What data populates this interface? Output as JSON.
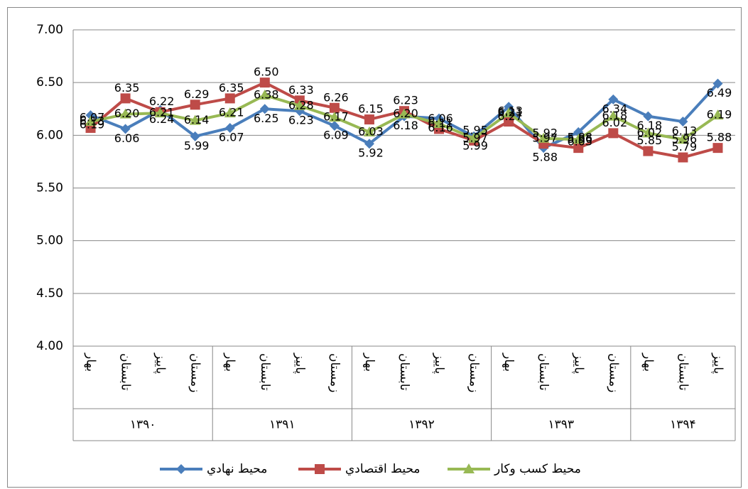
{
  "chart_data": {
    "type": "line",
    "groups": [
      {
        "label": "۱۳۹۰",
        "categories": [
          "بهار",
          "تابستان",
          "پاییز",
          "زمستان"
        ]
      },
      {
        "label": "۱۳۹۱",
        "categories": [
          "بهار",
          "تابستان",
          "پاییز",
          "زمستان"
        ]
      },
      {
        "label": "۱۳۹۲",
        "categories": [
          "بهار",
          "تابستان",
          "پاییز",
          "زمستان"
        ]
      },
      {
        "label": "۱۳۹۳",
        "categories": [
          "بهار",
          "تابستان",
          "پاییز",
          "زمستان"
        ]
      },
      {
        "label": "۱۳۹۴",
        "categories": [
          "بهار",
          "تابستان",
          "پاییز"
        ]
      }
    ],
    "series": [
      {
        "name": "محيط نهادي",
        "color": "#4a7ebb",
        "marker": "diamond",
        "values": [
          6.19,
          6.06,
          6.24,
          5.99,
          6.07,
          6.25,
          6.23,
          6.09,
          5.92,
          6.18,
          6.16,
          5.99,
          6.27,
          5.88,
          6.03,
          6.34,
          6.18,
          6.13,
          6.49
        ],
        "value_labels": [
          "6.19",
          "6.06",
          "6.24",
          "5.99",
          "6.07",
          "6.25",
          "6.23",
          "6.09",
          "5.92",
          "6.18",
          "6.16",
          "5.99",
          "6.27",
          "5.88",
          "6.03",
          "6.34",
          "6.18",
          "6.13",
          "6.49"
        ]
      },
      {
        "name": "محيط اقتصادي",
        "color": "#be4b48",
        "marker": "square",
        "values": [
          6.07,
          6.35,
          6.22,
          6.29,
          6.35,
          6.5,
          6.33,
          6.26,
          6.15,
          6.23,
          6.06,
          5.95,
          6.13,
          5.92,
          5.88,
          6.02,
          5.85,
          5.79,
          5.88
        ],
        "value_labels": [
          "6.07",
          "6.35",
          "6.22",
          "6.29",
          "6.35",
          "6.50",
          "6.33",
          "6.26",
          "6.15",
          "6.23",
          "6.06",
          "5.95",
          "6.13",
          "5.92",
          "5.88",
          "6.02",
          "5.85",
          "5.79",
          "5.88"
        ]
      },
      {
        "name": "محيط كسب وكار",
        "color": "#98b954",
        "marker": "triangle",
        "values": [
          6.13,
          6.2,
          6.21,
          6.14,
          6.21,
          6.38,
          6.28,
          6.17,
          6.03,
          6.2,
          6.11,
          5.97,
          6.21,
          5.97,
          5.96,
          6.18,
          6.02,
          5.96,
          6.19
        ],
        "value_labels": [
          "6.13",
          "6.20",
          "6.21",
          "6.14",
          "6.21",
          "6.38",
          "6.28",
          "6.17",
          "6.03",
          "6.20",
          "6.11",
          "5.97",
          "6.21",
          "5.97",
          "5.96",
          "6.18",
          "6.02",
          "5.96",
          "6.19"
        ]
      }
    ],
    "ylim": [
      4,
      7
    ],
    "yticks": [
      {
        "value": 4,
        "label": "4.00"
      },
      {
        "value": 4.5,
        "label": "4.50"
      },
      {
        "value": 5,
        "label": "5.00"
      },
      {
        "value": 5.5,
        "label": "5.50"
      },
      {
        "value": 6,
        "label": "6.00"
      },
      {
        "value": 6.5,
        "label": "6.50"
      },
      {
        "value": 7,
        "label": "7.00"
      }
    ],
    "grid": true,
    "legend": "bottom"
  }
}
